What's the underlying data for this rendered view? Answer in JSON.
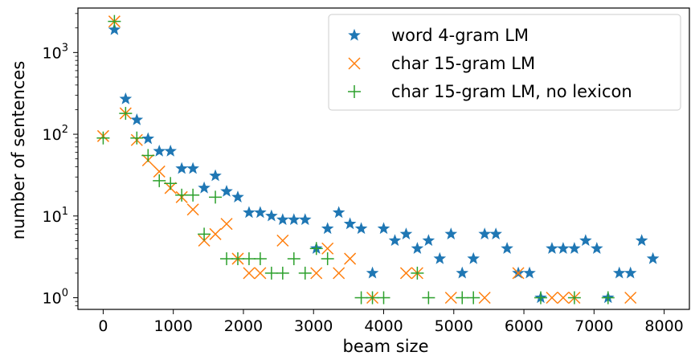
{
  "chart_data": {
    "type": "scatter",
    "title": "",
    "xlabel": "beam size",
    "ylabel": "number of sentences",
    "xlim": [
      -360,
      8360
    ],
    "ylim": [
      0.72,
      3500
    ],
    "yscale": "log",
    "grid": false,
    "legend_position": "top-right",
    "x_ticks": [
      0,
      1000,
      2000,
      3000,
      4000,
      5000,
      6000,
      7000,
      8000
    ],
    "x_tick_labels": [
      "0",
      "1000",
      "2000",
      "3000",
      "4000",
      "5000",
      "6000",
      "7000",
      "8000"
    ],
    "y_ticks": [
      1,
      10,
      100,
      1000
    ],
    "y_tick_labels": [
      {
        "base": "10",
        "exp": "0"
      },
      {
        "base": "10",
        "exp": "1"
      },
      {
        "base": "10",
        "exp": "2"
      },
      {
        "base": "10",
        "exp": "3"
      }
    ],
    "series": [
      {
        "name": "word 4-gram LM",
        "marker": "star",
        "color": "#1f77b4",
        "points": [
          [
            160,
            1900
          ],
          [
            320,
            270
          ],
          [
            480,
            150
          ],
          [
            640,
            88
          ],
          [
            800,
            62
          ],
          [
            960,
            62
          ],
          [
            1120,
            38
          ],
          [
            1280,
            38
          ],
          [
            1440,
            22
          ],
          [
            1600,
            31
          ],
          [
            1760,
            20
          ],
          [
            1920,
            17
          ],
          [
            2080,
            11
          ],
          [
            2240,
            11
          ],
          [
            2400,
            10
          ],
          [
            2560,
            9
          ],
          [
            2720,
            9
          ],
          [
            2880,
            9
          ],
          [
            3040,
            4
          ],
          [
            3200,
            7
          ],
          [
            3360,
            11
          ],
          [
            3520,
            8
          ],
          [
            3680,
            7
          ],
          [
            3840,
            2
          ],
          [
            4000,
            7
          ],
          [
            4160,
            5
          ],
          [
            4320,
            6
          ],
          [
            4480,
            4
          ],
          [
            4640,
            5
          ],
          [
            4800,
            3
          ],
          [
            4960,
            6
          ],
          [
            5120,
            2
          ],
          [
            5280,
            3
          ],
          [
            5440,
            6
          ],
          [
            5600,
            6
          ],
          [
            5760,
            4
          ],
          [
            5920,
            2
          ],
          [
            6080,
            2
          ],
          [
            6240,
            1
          ],
          [
            6400,
            4
          ],
          [
            6560,
            4
          ],
          [
            6720,
            4
          ],
          [
            6880,
            5
          ],
          [
            7040,
            4
          ],
          [
            7200,
            1
          ],
          [
            7360,
            2
          ],
          [
            7520,
            2
          ],
          [
            7680,
            5
          ],
          [
            7840,
            3
          ]
        ]
      },
      {
        "name": "char 15-gram LM",
        "marker": "x",
        "color": "#ff7f0e",
        "points": [
          [
            0,
            95
          ],
          [
            160,
            2400
          ],
          [
            320,
            180
          ],
          [
            480,
            85
          ],
          [
            640,
            48
          ],
          [
            800,
            35
          ],
          [
            960,
            22
          ],
          [
            1120,
            17
          ],
          [
            1280,
            12
          ],
          [
            1440,
            5
          ],
          [
            1600,
            6
          ],
          [
            1760,
            8
          ],
          [
            1920,
            3
          ],
          [
            2080,
            2
          ],
          [
            2240,
            2
          ],
          [
            2560,
            5
          ],
          [
            3040,
            2
          ],
          [
            3200,
            4
          ],
          [
            3360,
            2
          ],
          [
            3520,
            3
          ],
          [
            3840,
            1
          ],
          [
            4320,
            2
          ],
          [
            4480,
            2
          ],
          [
            4960,
            1
          ],
          [
            5440,
            1
          ],
          [
            5920,
            2
          ],
          [
            6400,
            1
          ],
          [
            6560,
            1
          ],
          [
            6720,
            1
          ],
          [
            7520,
            1
          ]
        ]
      },
      {
        "name": "char 15-gram LM, no lexicon",
        "marker": "plus",
        "color": "#2ca02c",
        "points": [
          [
            0,
            90
          ],
          [
            160,
            2400
          ],
          [
            320,
            180
          ],
          [
            480,
            90
          ],
          [
            640,
            55
          ],
          [
            800,
            27
          ],
          [
            960,
            25
          ],
          [
            1120,
            18
          ],
          [
            1280,
            18
          ],
          [
            1440,
            6
          ],
          [
            1600,
            17
          ],
          [
            1760,
            3
          ],
          [
            1920,
            3
          ],
          [
            2080,
            3
          ],
          [
            2240,
            3
          ],
          [
            2400,
            2
          ],
          [
            2560,
            2
          ],
          [
            2720,
            3
          ],
          [
            2880,
            2
          ],
          [
            3040,
            4
          ],
          [
            3200,
            3
          ],
          [
            3680,
            1
          ],
          [
            3840,
            1
          ],
          [
            4000,
            1
          ],
          [
            4480,
            2
          ],
          [
            4640,
            1
          ],
          [
            5120,
            1
          ],
          [
            5280,
            1
          ],
          [
            6240,
            1
          ],
          [
            6720,
            1
          ],
          [
            7200,
            1
          ]
        ]
      }
    ]
  }
}
